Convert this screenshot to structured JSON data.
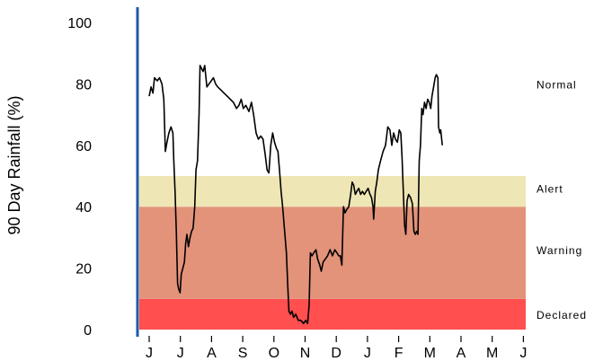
{
  "chart_data": {
    "type": "line",
    "title": "",
    "xlabel": "",
    "ylabel": "90 Day Rainfall (%)",
    "ylim": [
      0,
      100
    ],
    "yticks": [
      0,
      20,
      40,
      60,
      80,
      100
    ],
    "xlim": [
      0,
      12.9
    ],
    "months": [
      "J",
      "J",
      "A",
      "S",
      "O",
      "N",
      "D",
      "J",
      "F",
      "M",
      "A",
      "M",
      "J"
    ],
    "grid": false,
    "axis_color": "#1f5aa6",
    "bands": [
      {
        "label": "Declared",
        "from": 0,
        "to": 10,
        "color": "#ff4f4f"
      },
      {
        "label": "Warning",
        "from": 10,
        "to": 40,
        "color": "#e3937a"
      },
      {
        "label": "Alert",
        "from": 40,
        "to": 50,
        "color": "#efe6b6"
      },
      {
        "label": "Normal",
        "from": 50,
        "to": 100,
        "color": "#ffffff"
      }
    ],
    "series": [
      {
        "color": "#000000",
        "points": [
          [
            0.0,
            76
          ],
          [
            0.06,
            79
          ],
          [
            0.12,
            77
          ],
          [
            0.17,
            82
          ],
          [
            0.26,
            81
          ],
          [
            0.33,
            82
          ],
          [
            0.41,
            80
          ],
          [
            0.47,
            75
          ],
          [
            0.52,
            58
          ],
          [
            0.57,
            61
          ],
          [
            0.63,
            64
          ],
          [
            0.7,
            66
          ],
          [
            0.76,
            64
          ],
          [
            0.79,
            55
          ],
          [
            0.83,
            45
          ],
          [
            0.87,
            32
          ],
          [
            0.91,
            15
          ],
          [
            0.95,
            13
          ],
          [
            0.99,
            12
          ],
          [
            1.03,
            18
          ],
          [
            1.08,
            20
          ],
          [
            1.13,
            22
          ],
          [
            1.17,
            28
          ],
          [
            1.21,
            31
          ],
          [
            1.26,
            27
          ],
          [
            1.31,
            30
          ],
          [
            1.36,
            32
          ],
          [
            1.41,
            33
          ],
          [
            1.46,
            40
          ],
          [
            1.5,
            52
          ],
          [
            1.55,
            55
          ],
          [
            1.6,
            70
          ],
          [
            1.63,
            86
          ],
          [
            1.68,
            85
          ],
          [
            1.73,
            84
          ],
          [
            1.78,
            86
          ],
          [
            1.85,
            79
          ],
          [
            1.92,
            80
          ],
          [
            1.99,
            81
          ],
          [
            2.06,
            82
          ],
          [
            2.13,
            80
          ],
          [
            2.2,
            79
          ],
          [
            2.3,
            78
          ],
          [
            2.4,
            77
          ],
          [
            2.5,
            76
          ],
          [
            2.6,
            75
          ],
          [
            2.7,
            74
          ],
          [
            2.8,
            72
          ],
          [
            2.88,
            73
          ],
          [
            2.95,
            75
          ],
          [
            3.02,
            72
          ],
          [
            3.1,
            73
          ],
          [
            3.2,
            71
          ],
          [
            3.28,
            74
          ],
          [
            3.35,
            70
          ],
          [
            3.43,
            64
          ],
          [
            3.5,
            62
          ],
          [
            3.58,
            63
          ],
          [
            3.65,
            62
          ],
          [
            3.72,
            57
          ],
          [
            3.78,
            52
          ],
          [
            3.84,
            51
          ],
          [
            3.9,
            60
          ],
          [
            3.96,
            64
          ],
          [
            4.02,
            61
          ],
          [
            4.08,
            59
          ],
          [
            4.13,
            58
          ],
          [
            4.18,
            52
          ],
          [
            4.23,
            45
          ],
          [
            4.28,
            40
          ],
          [
            4.32,
            35
          ],
          [
            4.36,
            30
          ],
          [
            4.4,
            25
          ],
          [
            4.44,
            15
          ],
          [
            4.48,
            6
          ],
          [
            4.53,
            5
          ],
          [
            4.58,
            6
          ],
          [
            4.63,
            4
          ],
          [
            4.7,
            5
          ],
          [
            4.78,
            3
          ],
          [
            4.86,
            3
          ],
          [
            4.95,
            2
          ],
          [
            5.02,
            3
          ],
          [
            5.08,
            2
          ],
          [
            5.13,
            8
          ],
          [
            5.17,
            25
          ],
          [
            5.22,
            24
          ],
          [
            5.28,
            25
          ],
          [
            5.35,
            26
          ],
          [
            5.4,
            23
          ],
          [
            5.47,
            21
          ],
          [
            5.52,
            19
          ],
          [
            5.58,
            22
          ],
          [
            5.65,
            23
          ],
          [
            5.72,
            24
          ],
          [
            5.8,
            26
          ],
          [
            5.88,
            24
          ],
          [
            5.95,
            26
          ],
          [
            6.02,
            25
          ],
          [
            6.08,
            24
          ],
          [
            6.13,
            24
          ],
          [
            6.18,
            21
          ],
          [
            6.23,
            40
          ],
          [
            6.28,
            38
          ],
          [
            6.33,
            39
          ],
          [
            6.4,
            40
          ],
          [
            6.46,
            44
          ],
          [
            6.51,
            48
          ],
          [
            6.56,
            47
          ],
          [
            6.61,
            44
          ],
          [
            6.66,
            45
          ],
          [
            6.72,
            46
          ],
          [
            6.78,
            44
          ],
          [
            6.84,
            45
          ],
          [
            6.9,
            44
          ],
          [
            6.96,
            45
          ],
          [
            7.02,
            46
          ],
          [
            7.08,
            44
          ],
          [
            7.13,
            43
          ],
          [
            7.18,
            40
          ],
          [
            7.2,
            36
          ],
          [
            7.25,
            45
          ],
          [
            7.3,
            48
          ],
          [
            7.35,
            52
          ],
          [
            7.42,
            55
          ],
          [
            7.5,
            58
          ],
          [
            7.58,
            60
          ],
          [
            7.65,
            66
          ],
          [
            7.72,
            65
          ],
          [
            7.78,
            60
          ],
          [
            7.84,
            64
          ],
          [
            7.9,
            62
          ],
          [
            7.96,
            61
          ],
          [
            8.02,
            65
          ],
          [
            8.07,
            64
          ],
          [
            8.11,
            56
          ],
          [
            8.15,
            45
          ],
          [
            8.19,
            34
          ],
          [
            8.23,
            31
          ],
          [
            8.27,
            42
          ],
          [
            8.32,
            44
          ],
          [
            8.38,
            43
          ],
          [
            8.44,
            41
          ],
          [
            8.49,
            32
          ],
          [
            8.53,
            31
          ],
          [
            8.58,
            32
          ],
          [
            8.62,
            31
          ],
          [
            8.66,
            55
          ],
          [
            8.7,
            60
          ],
          [
            8.74,
            72
          ],
          [
            8.78,
            70
          ],
          [
            8.83,
            74
          ],
          [
            8.88,
            72
          ],
          [
            8.93,
            75
          ],
          [
            8.98,
            74
          ],
          [
            9.03,
            72
          ],
          [
            9.07,
            76
          ],
          [
            9.12,
            79
          ],
          [
            9.17,
            82
          ],
          [
            9.21,
            83
          ],
          [
            9.26,
            82
          ],
          [
            9.28,
            66
          ],
          [
            9.32,
            64
          ],
          [
            9.35,
            65
          ],
          [
            9.4,
            60
          ]
        ]
      }
    ]
  }
}
